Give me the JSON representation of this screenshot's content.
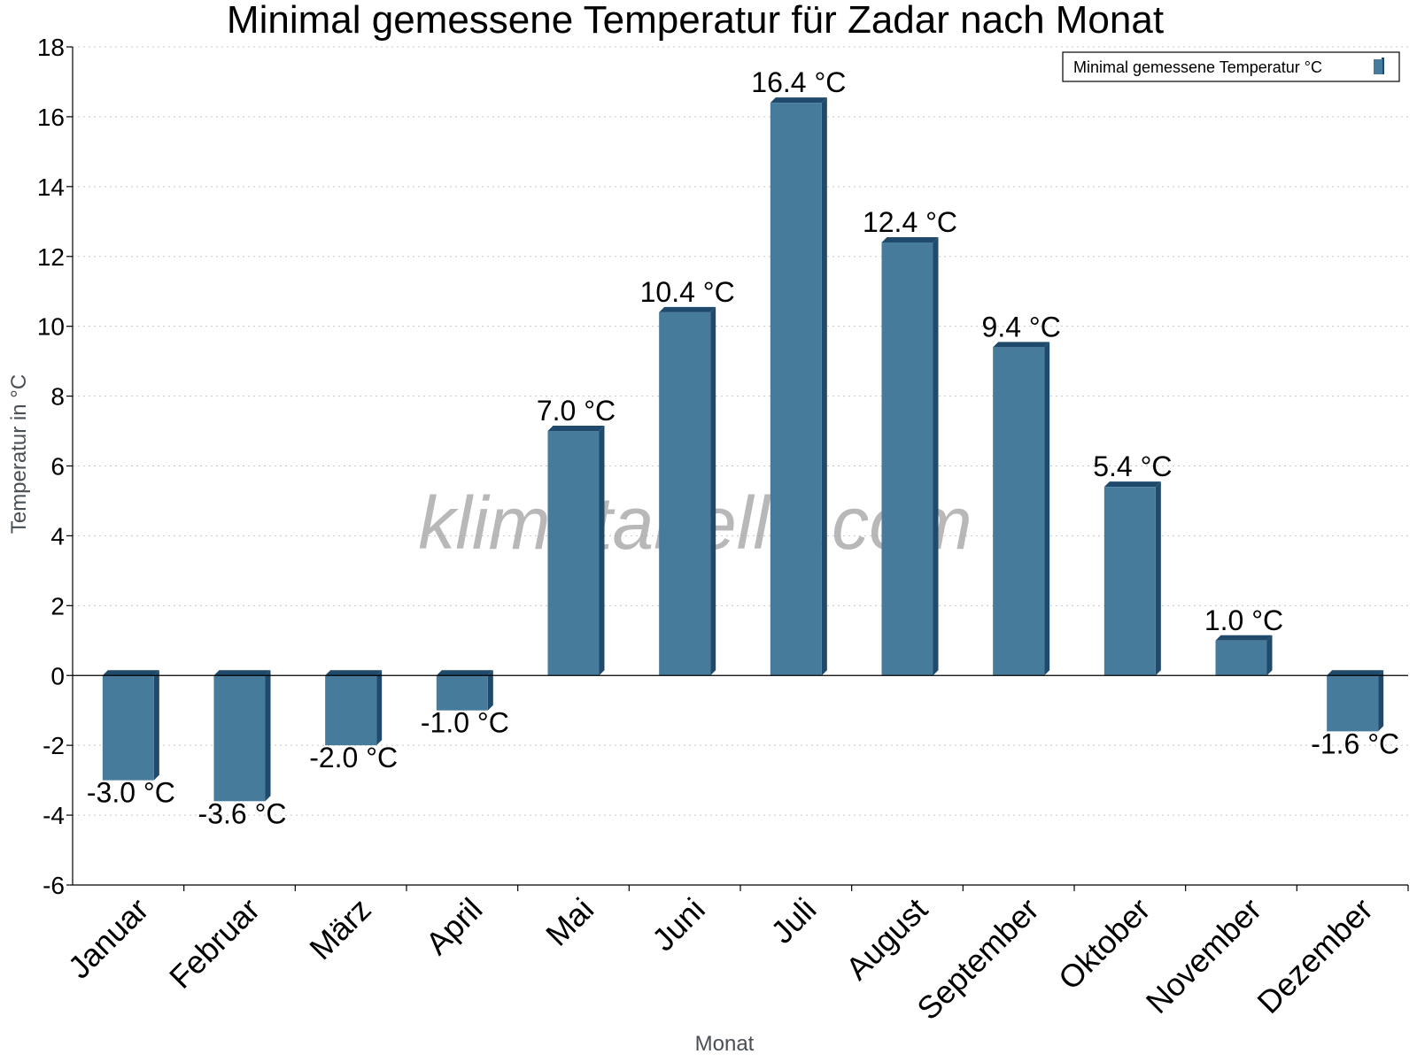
{
  "chart_data": {
    "type": "bar",
    "title": "Minimal gemessene Temperatur für Zadar nach Monat",
    "xlabel": "Monat",
    "ylabel": "Temperatur in °C",
    "ylim": [
      -6,
      18
    ],
    "yticks": [
      -6,
      -4,
      -2,
      0,
      2,
      4,
      6,
      8,
      10,
      12,
      14,
      16,
      18
    ],
    "grid": true,
    "legend_position": "top-right",
    "categories": [
      "Januar",
      "Februar",
      "März",
      "April",
      "Mai",
      "Juni",
      "Juli",
      "August",
      "September",
      "Oktober",
      "November",
      "Dezember"
    ],
    "series": [
      {
        "name": "Minimal gemessene Temperatur °C",
        "values": [
          -3.0,
          -3.6,
          -2.0,
          -1.0,
          7.0,
          10.4,
          16.4,
          12.4,
          9.4,
          5.4,
          1.0,
          -1.6
        ],
        "labels": [
          "-3.0 °C",
          "-3.6 °C",
          "-2.0 °C",
          "-1.0 °C",
          "7.0 °C",
          "10.4 °C",
          "16.4 °C",
          "12.4 °C",
          "9.4 °C",
          "5.4 °C",
          "1.0 °C",
          "-1.6 °C"
        ]
      }
    ],
    "colors": {
      "bar": "#467b9c",
      "bar_side": "#1f4a6b",
      "bar_top": "#1f4a6b",
      "grid": "#c8c8c8"
    },
    "watermark": "klimatabelle.com"
  }
}
